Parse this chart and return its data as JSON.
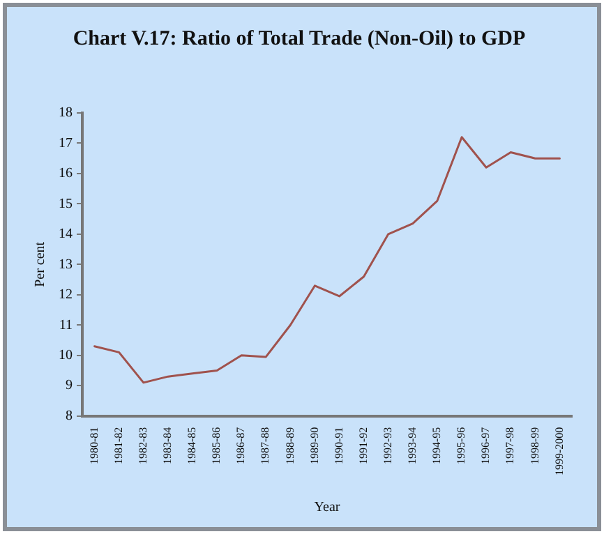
{
  "chart_data": {
    "type": "line",
    "title": "Chart V.17: Ratio of Total Trade (Non-Oil) to GDP",
    "xlabel": "Year",
    "ylabel": "Per cent",
    "categories": [
      "1980-81",
      "1981-82",
      "1982-83",
      "1983-84",
      "1984-85",
      "1985-86",
      "1986-87",
      "1987-88",
      "1988-89",
      "1989-90",
      "1990-91",
      "1991-92",
      "1992-93",
      "1993-94",
      "1994-95",
      "1995-96",
      "1996-97",
      "1997-98",
      "1998-99",
      "1999-2000"
    ],
    "series": [
      {
        "color": "#a0524d",
        "values": [
          10.3,
          10.1,
          9.1,
          9.3,
          9.4,
          9.5,
          10.0,
          9.95,
          11.0,
          12.3,
          11.95,
          12.6,
          14.0,
          14.35,
          15.1,
          17.2,
          16.2,
          16.7,
          16.5,
          16.5
        ]
      }
    ],
    "ylim": [
      8,
      18
    ],
    "yticks": [
      8,
      9,
      10,
      11,
      12,
      13,
      14,
      15,
      16,
      17,
      18
    ],
    "grid": false,
    "legend": false,
    "marker": "none",
    "line_style": "solid"
  }
}
